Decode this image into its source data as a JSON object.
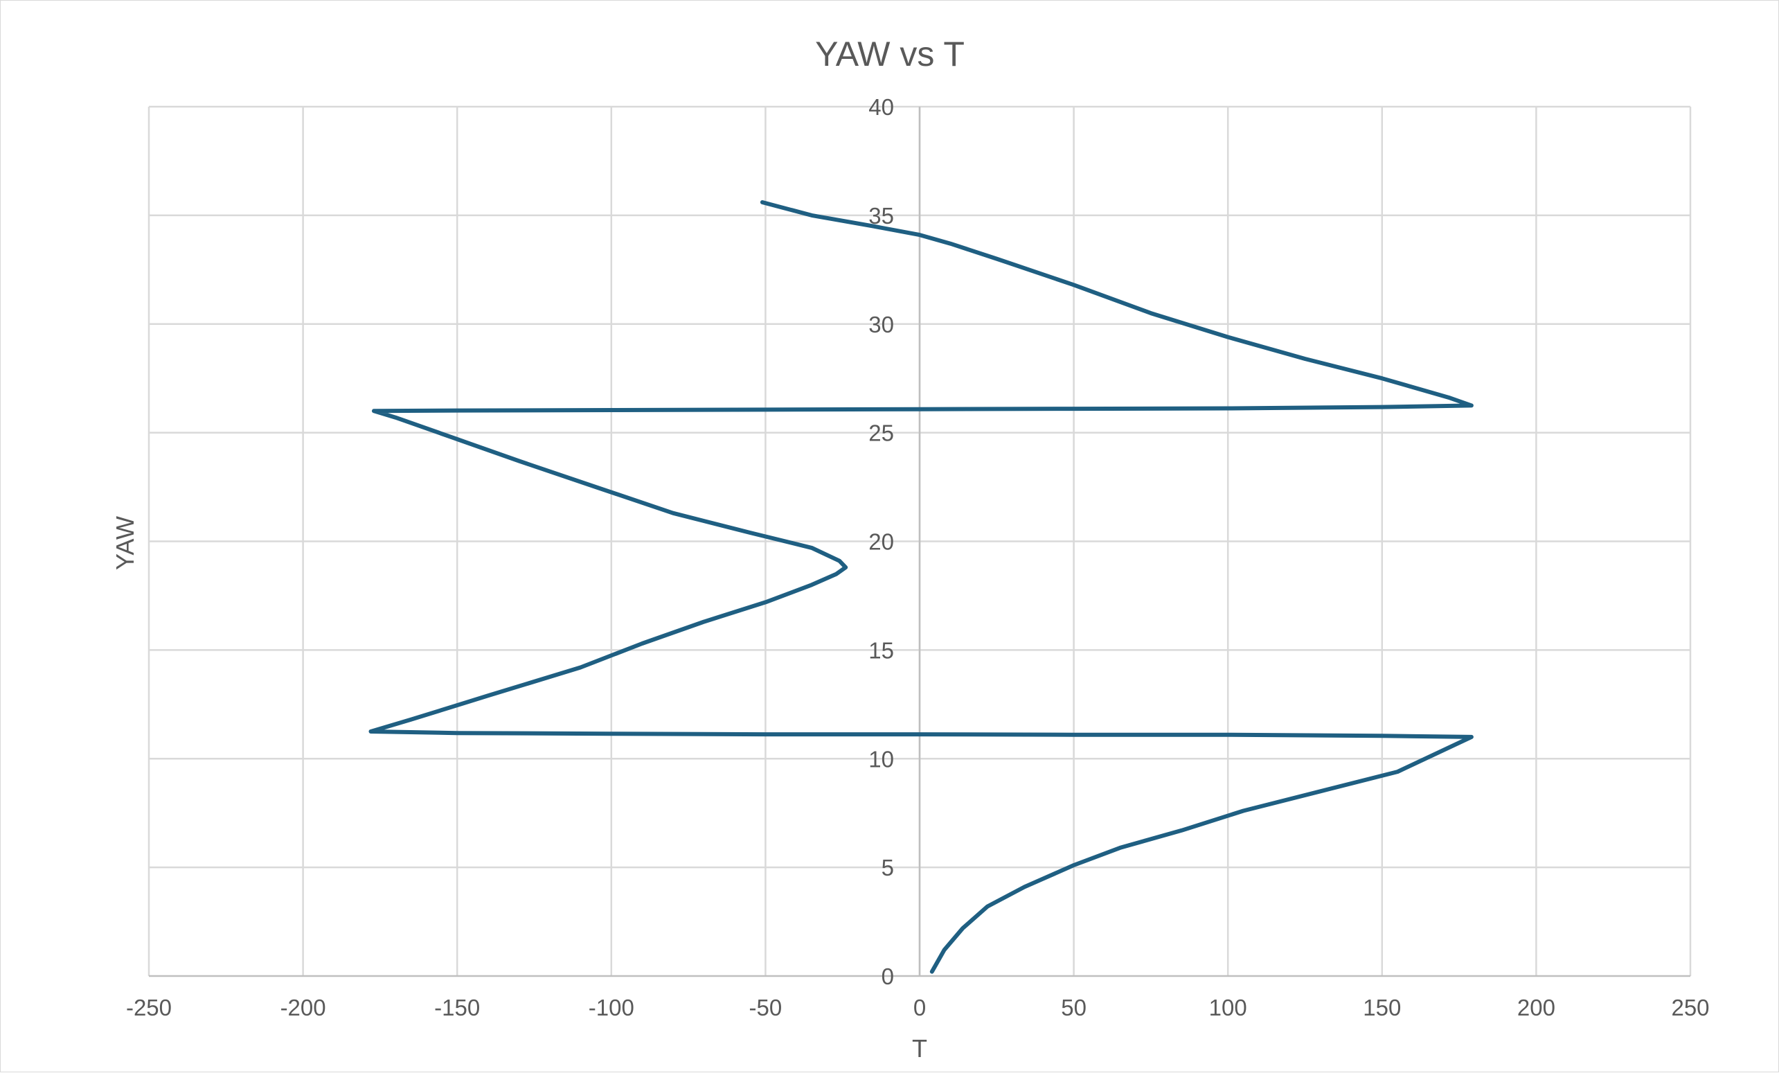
{
  "chart_data": {
    "type": "scatter",
    "title": "YAW vs T",
    "xlabel": "T",
    "ylabel": "YAW",
    "xlim": [
      -250,
      250
    ],
    "ylim": [
      0,
      40
    ],
    "x_ticks": [
      -250,
      -200,
      -150,
      -100,
      -50,
      0,
      50,
      100,
      150,
      200,
      250
    ],
    "y_ticks": [
      0,
      5,
      10,
      15,
      20,
      25,
      30,
      35,
      40
    ],
    "grid": true,
    "legend": "none",
    "line_color": "#1f5f82",
    "series": [
      {
        "x": [
          4,
          8,
          14,
          22,
          34,
          50,
          65,
          85,
          105,
          130,
          155,
          179,
          150,
          100,
          50,
          0,
          -50,
          -100,
          -150,
          -178,
          -165,
          -140,
          -110,
          -90,
          -70,
          -50,
          -35,
          -27,
          -24,
          -26,
          -35,
          -55,
          -80,
          -105,
          -130,
          -150,
          -170,
          -177,
          -150,
          -100,
          -50,
          0,
          50,
          100,
          150,
          179,
          172,
          150,
          125,
          100,
          75,
          50,
          25,
          10,
          0,
          -15,
          -35,
          -51
        ],
        "y": [
          0.2,
          1.2,
          2.2,
          3.2,
          4.1,
          5.1,
          5.9,
          6.7,
          7.6,
          8.5,
          9.4,
          11.0,
          11.05,
          11.1,
          11.1,
          11.12,
          11.12,
          11.15,
          11.18,
          11.25,
          11.8,
          12.9,
          14.2,
          15.3,
          16.3,
          17.2,
          18.0,
          18.5,
          18.8,
          19.1,
          19.7,
          20.4,
          21.3,
          22.5,
          23.7,
          24.7,
          25.7,
          26.0,
          26.02,
          26.04,
          26.06,
          26.08,
          26.1,
          26.12,
          26.18,
          26.25,
          26.6,
          27.5,
          28.4,
          29.4,
          30.5,
          31.8,
          33.0,
          33.7,
          34.1,
          34.5,
          35.0,
          35.6
        ]
      }
    ]
  }
}
